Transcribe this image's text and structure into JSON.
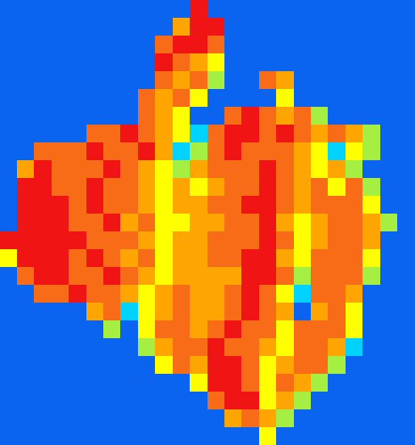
{
  "chart_data": {
    "type": "heatmap",
    "tick_labels": false,
    "grid": false,
    "cells": [
      [
        0,
        0,
        0,
        0,
        0,
        0,
        0,
        0,
        0,
        0,
        0,
        97,
        0,
        0,
        0,
        0,
        0,
        0,
        0,
        0,
        0,
        0,
        0,
        0
      ],
      [
        0,
        0,
        0,
        0,
        0,
        0,
        0,
        0,
        0,
        0,
        78,
        97,
        97,
        0,
        0,
        0,
        0,
        0,
        0,
        0,
        0,
        0,
        0,
        0
      ],
      [
        0,
        0,
        0,
        0,
        0,
        0,
        0,
        0,
        0,
        85,
        97,
        97,
        85,
        0,
        0,
        0,
        0,
        0,
        0,
        0,
        0,
        0,
        0,
        0
      ],
      [
        0,
        0,
        0,
        0,
        0,
        0,
        0,
        0,
        0,
        97,
        85,
        78,
        65,
        0,
        0,
        0,
        0,
        0,
        0,
        0,
        0,
        0,
        0,
        0
      ],
      [
        0,
        0,
        0,
        0,
        0,
        0,
        0,
        0,
        0,
        85,
        78,
        85,
        50,
        0,
        0,
        85,
        78,
        0,
        0,
        0,
        0,
        0,
        0,
        0
      ],
      [
        0,
        0,
        0,
        0,
        0,
        0,
        0,
        0,
        85,
        78,
        85,
        65,
        0,
        0,
        0,
        0,
        65,
        0,
        0,
        0,
        0,
        0,
        0,
        0
      ],
      [
        0,
        0,
        0,
        0,
        0,
        0,
        0,
        0,
        85,
        78,
        65,
        0,
        0,
        85,
        97,
        85,
        78,
        85,
        50,
        0,
        0,
        0,
        0,
        0
      ],
      [
        0,
        0,
        0,
        0,
        0,
        85,
        85,
        97,
        85,
        78,
        65,
        35,
        85,
        97,
        97,
        85,
        97,
        85,
        78,
        85,
        78,
        50,
        0,
        0
      ],
      [
        0,
        0,
        85,
        85,
        85,
        97,
        85,
        85,
        97,
        78,
        35,
        50,
        85,
        97,
        85,
        85,
        85,
        78,
        65,
        35,
        65,
        50,
        0,
        0
      ],
      [
        0,
        78,
        97,
        85,
        85,
        85,
        97,
        85,
        78,
        65,
        50,
        78,
        85,
        85,
        85,
        97,
        85,
        78,
        65,
        78,
        50,
        0,
        0,
        0
      ],
      [
        0,
        97,
        97,
        85,
        85,
        97,
        85,
        85,
        78,
        65,
        78,
        65,
        78,
        85,
        85,
        97,
        85,
        78,
        85,
        65,
        85,
        50,
        0,
        0
      ],
      [
        0,
        97,
        97,
        97,
        85,
        97,
        85,
        85,
        78,
        65,
        78,
        78,
        85,
        85,
        97,
        97,
        85,
        78,
        85,
        85,
        85,
        65,
        0,
        0
      ],
      [
        0,
        97,
        97,
        97,
        85,
        85,
        97,
        78,
        85,
        65,
        65,
        78,
        78,
        85,
        85,
        97,
        78,
        65,
        78,
        85,
        85,
        78,
        50,
        0
      ],
      [
        97,
        97,
        97,
        97,
        97,
        85,
        85,
        85,
        78,
        65,
        78,
        78,
        85,
        85,
        85,
        97,
        85,
        65,
        78,
        85,
        85,
        78,
        0,
        0
      ],
      [
        65,
        97,
        97,
        97,
        85,
        97,
        85,
        78,
        85,
        65,
        78,
        78,
        85,
        85,
        97,
        97,
        78,
        65,
        85,
        85,
        85,
        65,
        0,
        0
      ],
      [
        0,
        85,
        97,
        97,
        85,
        85,
        97,
        85,
        78,
        65,
        78,
        78,
        78,
        78,
        97,
        97,
        85,
        50,
        85,
        85,
        85,
        50,
        0,
        0
      ],
      [
        0,
        0,
        85,
        85,
        97,
        85,
        85,
        78,
        65,
        78,
        85,
        78,
        78,
        85,
        97,
        85,
        65,
        35,
        85,
        85,
        78,
        0,
        0,
        0
      ],
      [
        0,
        0,
        0,
        0,
        0,
        78,
        85,
        35,
        65,
        78,
        85,
        78,
        78,
        85,
        97,
        85,
        78,
        0,
        78,
        85,
        65,
        0,
        0,
        0
      ],
      [
        0,
        0,
        0,
        0,
        0,
        0,
        50,
        0,
        65,
        85,
        85,
        78,
        85,
        97,
        85,
        85,
        65,
        85,
        85,
        85,
        65,
        0,
        0,
        0
      ],
      [
        0,
        0,
        0,
        0,
        0,
        0,
        0,
        0,
        50,
        78,
        85,
        85,
        97,
        85,
        85,
        78,
        65,
        85,
        85,
        78,
        35,
        0,
        0,
        0
      ],
      [
        0,
        0,
        0,
        0,
        0,
        0,
        0,
        0,
        0,
        65,
        85,
        78,
        97,
        97,
        85,
        65,
        78,
        85,
        85,
        50,
        0,
        0,
        0,
        0
      ],
      [
        0,
        0,
        0,
        0,
        0,
        0,
        0,
        0,
        0,
        0,
        0,
        65,
        97,
        97,
        85,
        65,
        85,
        78,
        50,
        0,
        0,
        0,
        0,
        0
      ],
      [
        0,
        0,
        0,
        0,
        0,
        0,
        0,
        0,
        0,
        0,
        0,
        0,
        85,
        97,
        97,
        65,
        78,
        50,
        0,
        0,
        0,
        0,
        0,
        0
      ],
      [
        0,
        0,
        0,
        0,
        0,
        0,
        0,
        0,
        0,
        0,
        0,
        0,
        0,
        78,
        85,
        78,
        50,
        0,
        0,
        0,
        0,
        0,
        0,
        0
      ],
      [
        0,
        0,
        0,
        0,
        0,
        0,
        0,
        0,
        0,
        0,
        0,
        0,
        0,
        0,
        0,
        65,
        0,
        0,
        0,
        0,
        0,
        0,
        0,
        0
      ]
    ]
  }
}
